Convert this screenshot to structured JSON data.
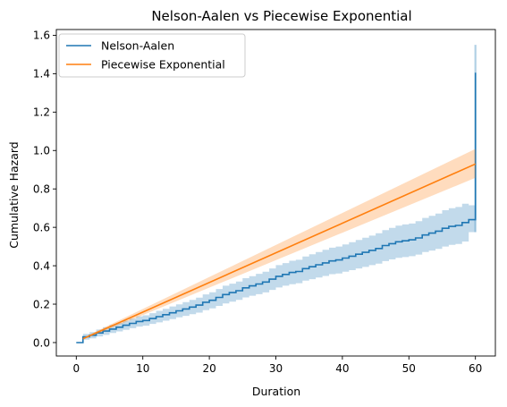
{
  "chart_data": {
    "type": "line",
    "title": "Nelson-Aalen vs Piecewise Exponential",
    "xlabel": "Duration",
    "ylabel": "Cumulative Hazard",
    "xlim": [
      -3,
      63
    ],
    "ylim": [
      -0.07,
      1.63
    ],
    "xticks": [
      0,
      10,
      20,
      30,
      40,
      50,
      60
    ],
    "yticks": [
      0.0,
      0.2,
      0.4,
      0.6,
      0.8,
      1.0,
      1.2,
      1.4,
      1.6
    ],
    "xtick_labels": [
      "0",
      "10",
      "20",
      "30",
      "40",
      "50",
      "60"
    ],
    "ytick_labels": [
      "0.0",
      "0.2",
      "0.4",
      "0.6",
      "0.8",
      "1.0",
      "1.2",
      "1.4",
      "1.6"
    ],
    "grid": false,
    "legend_position": "top-left",
    "series": [
      {
        "name": "Nelson-Aalen",
        "kind": "step",
        "color": "#1f77b4",
        "band_color": "#1f77b4",
        "x": [
          0,
          1,
          2,
          3,
          4,
          5,
          6,
          7,
          8,
          9,
          10,
          11,
          12,
          13,
          14,
          15,
          16,
          17,
          18,
          19,
          20,
          21,
          22,
          23,
          24,
          25,
          26,
          27,
          28,
          29,
          30,
          31,
          32,
          33,
          34,
          35,
          36,
          37,
          38,
          39,
          40,
          41,
          42,
          43,
          44,
          45,
          46,
          47,
          48,
          49,
          50,
          51,
          52,
          53,
          54,
          55,
          56,
          57,
          58,
          59,
          60
        ],
        "y": [
          0.0,
          0.03,
          0.038,
          0.05,
          0.06,
          0.07,
          0.08,
          0.09,
          0.1,
          0.11,
          0.115,
          0.125,
          0.135,
          0.145,
          0.155,
          0.165,
          0.175,
          0.185,
          0.195,
          0.21,
          0.22,
          0.235,
          0.25,
          0.26,
          0.27,
          0.285,
          0.295,
          0.305,
          0.315,
          0.33,
          0.345,
          0.355,
          0.365,
          0.37,
          0.385,
          0.395,
          0.405,
          0.415,
          0.425,
          0.43,
          0.44,
          0.45,
          0.46,
          0.47,
          0.48,
          0.49,
          0.505,
          0.515,
          0.525,
          0.53,
          0.535,
          0.545,
          0.56,
          0.57,
          0.58,
          0.595,
          0.605,
          0.61,
          0.625,
          0.64,
          0.64
        ],
        "lower": [
          0.0,
          0.015,
          0.022,
          0.032,
          0.04,
          0.05,
          0.058,
          0.066,
          0.075,
          0.083,
          0.088,
          0.097,
          0.105,
          0.114,
          0.122,
          0.131,
          0.139,
          0.148,
          0.156,
          0.169,
          0.178,
          0.191,
          0.204,
          0.213,
          0.222,
          0.235,
          0.244,
          0.252,
          0.261,
          0.274,
          0.287,
          0.296,
          0.304,
          0.309,
          0.322,
          0.33,
          0.339,
          0.347,
          0.356,
          0.36,
          0.369,
          0.377,
          0.386,
          0.394,
          0.403,
          0.411,
          0.424,
          0.433,
          0.441,
          0.445,
          0.45,
          0.458,
          0.471,
          0.479,
          0.488,
          0.5,
          0.509,
          0.513,
          0.526,
          0.575,
          0.575
        ],
        "upper": [
          0.0,
          0.045,
          0.055,
          0.068,
          0.08,
          0.092,
          0.103,
          0.114,
          0.125,
          0.137,
          0.142,
          0.153,
          0.165,
          0.176,
          0.188,
          0.199,
          0.211,
          0.222,
          0.234,
          0.251,
          0.262,
          0.279,
          0.296,
          0.307,
          0.318,
          0.335,
          0.346,
          0.358,
          0.369,
          0.386,
          0.403,
          0.414,
          0.426,
          0.431,
          0.448,
          0.46,
          0.471,
          0.483,
          0.494,
          0.5,
          0.511,
          0.523,
          0.534,
          0.546,
          0.557,
          0.569,
          0.586,
          0.597,
          0.609,
          0.615,
          0.62,
          0.632,
          0.649,
          0.66,
          0.672,
          0.689,
          0.7,
          0.706,
          0.723,
          0.715,
          0.715
        ],
        "final_x": 60,
        "final_y": 1.405,
        "final_upper": 1.55
      },
      {
        "name": "Piecewise Exponential",
        "kind": "line",
        "color": "#ff7f0e",
        "band_color": "#ff7f0e",
        "x": [
          1,
          60
        ],
        "y": [
          0.02,
          0.93
        ],
        "lower": [
          0.015,
          0.858
        ],
        "upper": [
          0.025,
          1.008
        ]
      }
    ]
  }
}
